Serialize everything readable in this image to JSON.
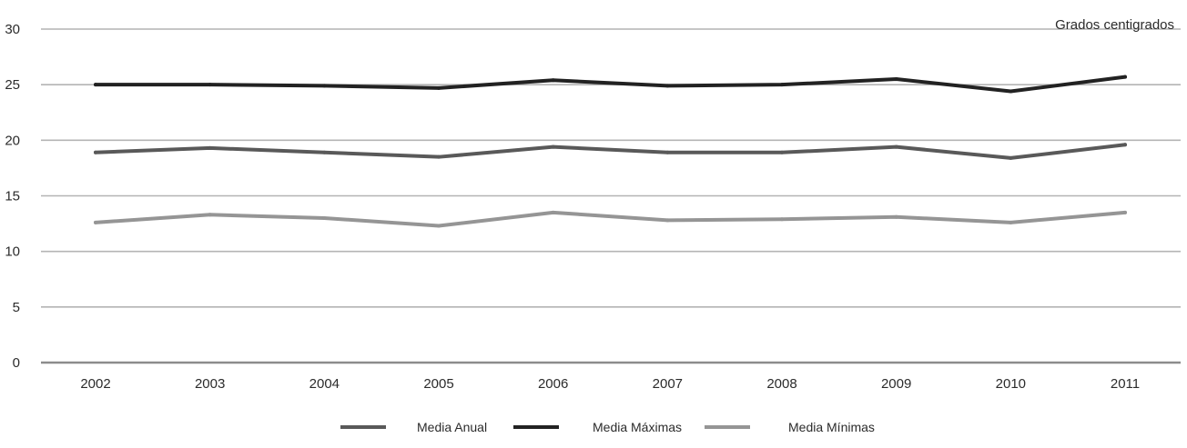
{
  "chart_data": {
    "type": "line",
    "unit_label": "Grados centigrados",
    "x": [
      "2002",
      "2003",
      "2004",
      "2005",
      "2006",
      "2007",
      "2008",
      "2009",
      "2010",
      "2011"
    ],
    "y_ticks": [
      "0",
      "5",
      "10",
      "15",
      "20",
      "25",
      "30"
    ],
    "ylim": [
      0,
      30
    ],
    "grid": true,
    "legend_position": "bottom",
    "series": [
      {
        "name": "Media Anual",
        "color": "#595959",
        "values": [
          18.9,
          19.3,
          18.9,
          18.5,
          19.4,
          18.9,
          18.9,
          19.4,
          18.4,
          19.6
        ]
      },
      {
        "name": "Media Máximas",
        "color": "#222222",
        "values": [
          25.0,
          25.0,
          24.9,
          24.7,
          25.4,
          24.9,
          25.0,
          25.5,
          24.4,
          25.7
        ]
      },
      {
        "name": "Media Mínimas",
        "color": "#959595",
        "values": [
          12.6,
          13.3,
          13.0,
          12.3,
          13.5,
          12.8,
          12.9,
          13.1,
          12.6,
          13.5
        ]
      }
    ]
  }
}
